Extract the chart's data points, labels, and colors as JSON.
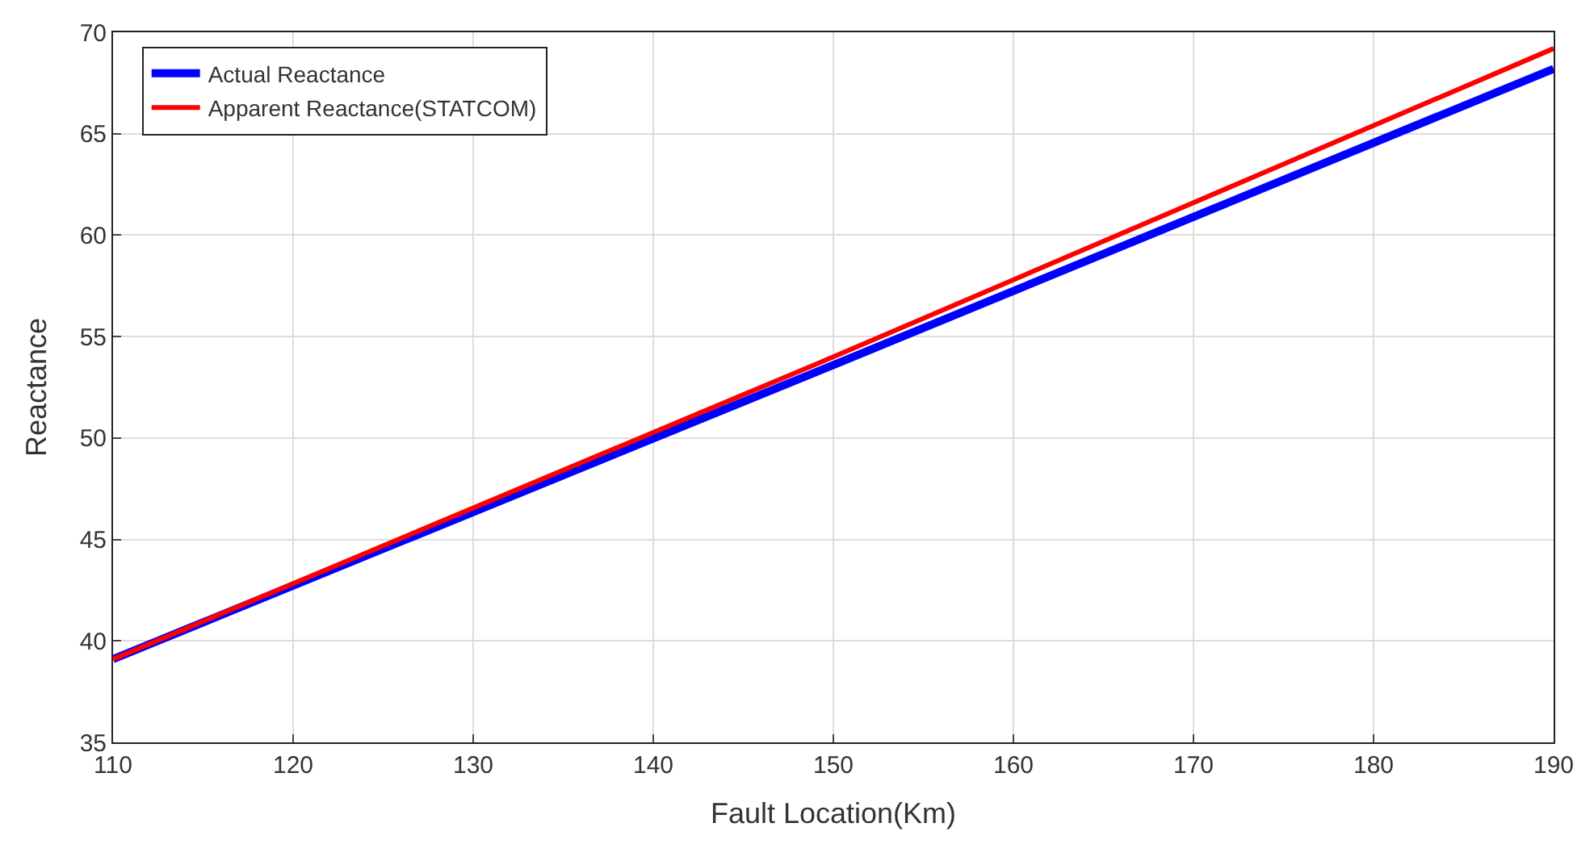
{
  "chart_data": {
    "type": "line",
    "xlabel": "Fault Location(Km)",
    "ylabel": "Reactance",
    "x": [
      110,
      150,
      190
    ],
    "series": [
      {
        "name": "Actual Reactance",
        "color": "#0000ff",
        "values": [
          39.1,
          53.6,
          68.2
        ]
      },
      {
        "name": "Apparent Reactance(STATCOM)",
        "color": "#ff0000",
        "values": [
          39.1,
          54.0,
          69.2
        ]
      }
    ],
    "xlim": [
      110,
      190
    ],
    "xticks": [
      110,
      120,
      130,
      140,
      150,
      160,
      170,
      180,
      190
    ],
    "ylim": [
      35,
      70
    ],
    "yticks": [
      35,
      40,
      45,
      50,
      55,
      60,
      65,
      70
    ],
    "grid": true,
    "legend": "top left",
    "marker": "none",
    "line_style": "solid"
  }
}
